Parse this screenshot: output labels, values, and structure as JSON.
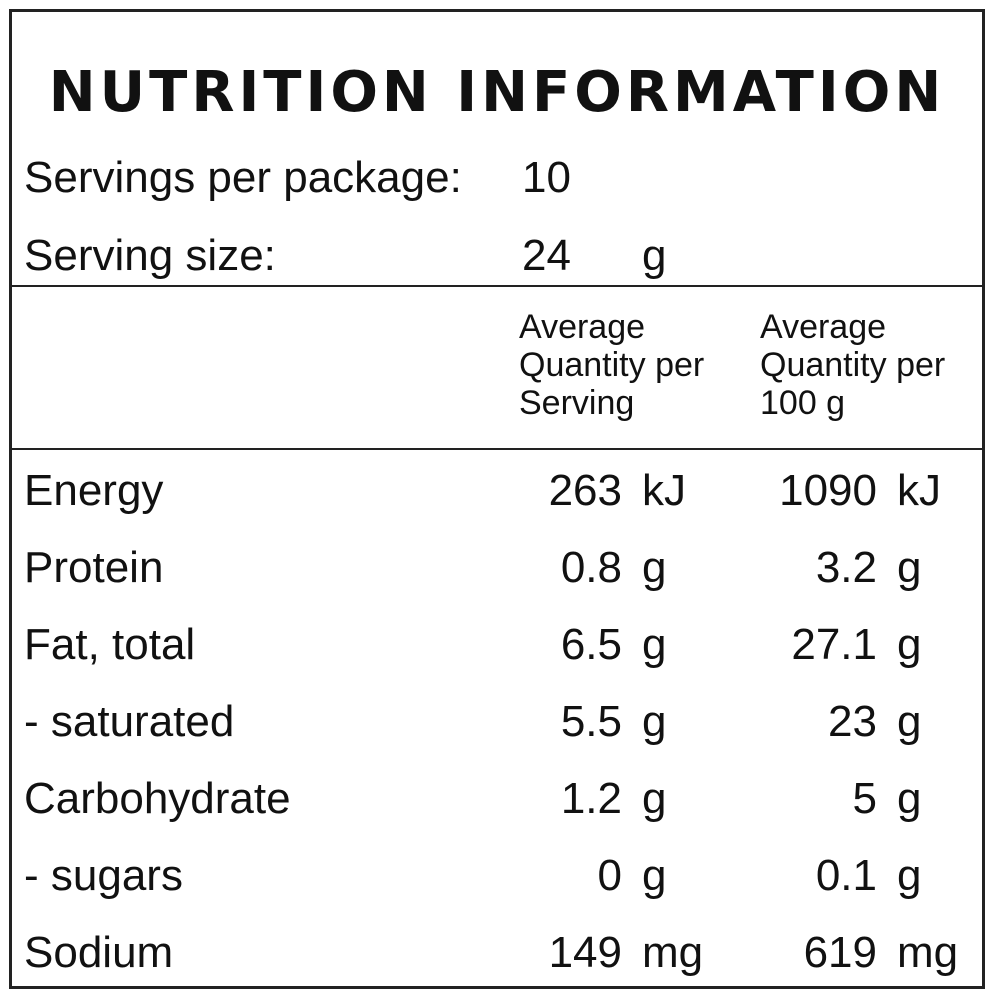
{
  "title": "NUTRITION INFORMATION",
  "servings_per_package": {
    "label": "Servings per package:",
    "value": "10"
  },
  "serving_size": {
    "label": "Serving size:",
    "value": "24",
    "unit": "g"
  },
  "column_headers": {
    "per_serving": "Average Quantity per Serving",
    "per_100g": "Average Quantity per 100 g"
  },
  "rows": [
    {
      "name": "Energy",
      "serving_value": "263",
      "serving_unit": "kJ",
      "per100_value": "1090",
      "per100_unit": "kJ"
    },
    {
      "name": "Protein",
      "serving_value": "0.8",
      "serving_unit": "g",
      "per100_value": "3.2",
      "per100_unit": "g"
    },
    {
      "name": "Fat, total",
      "serving_value": "6.5",
      "serving_unit": "g",
      "per100_value": "27.1",
      "per100_unit": "g"
    },
    {
      "name": "- saturated",
      "serving_value": "5.5",
      "serving_unit": "g",
      "per100_value": "23",
      "per100_unit": "g"
    },
    {
      "name": "Carbohydrate",
      "serving_value": "1.2",
      "serving_unit": "g",
      "per100_value": "5",
      "per100_unit": "g"
    },
    {
      "name": "- sugars",
      "serving_value": "0",
      "serving_unit": "g",
      "per100_value": "0.1",
      "per100_unit": "g"
    },
    {
      "name": "Sodium",
      "serving_value": "149",
      "serving_unit": "mg",
      "per100_value": "619",
      "per100_unit": "mg"
    }
  ]
}
